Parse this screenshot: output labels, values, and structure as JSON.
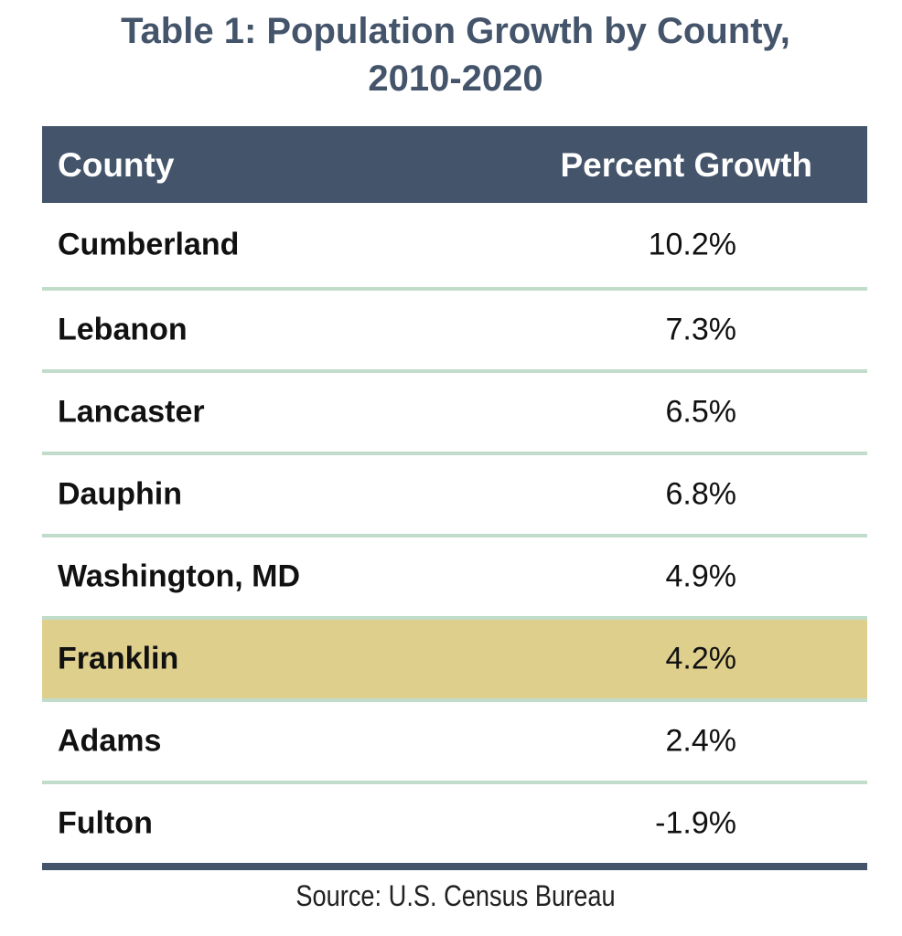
{
  "title_line1": "Table 1: Population Growth by County,",
  "title_line2": "2010-2020",
  "headers": {
    "county": "County",
    "growth": "Percent Growth"
  },
  "rows": [
    {
      "county": "Cumberland",
      "growth": "10.2%"
    },
    {
      "county": "Lebanon",
      "growth": "7.3%"
    },
    {
      "county": "Lancaster",
      "growth": "6.5%"
    },
    {
      "county": "Dauphin",
      "growth": "6.8%"
    },
    {
      "county": "Washington, MD",
      "growth": "4.9%"
    },
    {
      "county": "Franklin",
      "growth": "4.2%",
      "highlighted": true
    },
    {
      "county": "Adams",
      "growth": "2.4%"
    },
    {
      "county": "Fulton",
      "growth": "-1.9%"
    }
  ],
  "source": "Source: U.S. Census Bureau",
  "colors": {
    "header": "#44546a",
    "highlight": "#dfcf8d",
    "separator": "#c1dccb"
  }
}
